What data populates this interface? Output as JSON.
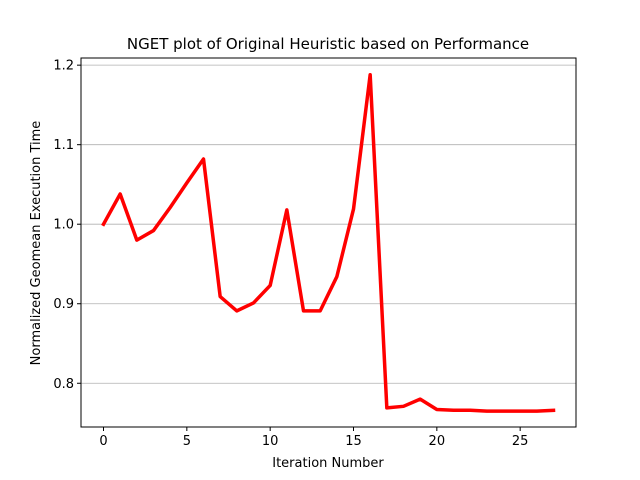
{
  "chart_data": {
    "type": "line",
    "title": "NGET plot of Original Heuristic based on Performance",
    "xlabel": "Iteration Number",
    "ylabel": "Normalized Geomean Execution Time",
    "xlim": [
      -1.35,
      28.35
    ],
    "ylim": [
      0.745,
      1.209
    ],
    "xticks": [
      0,
      5,
      10,
      15,
      20,
      25
    ],
    "yticks": [
      0.8,
      0.9,
      1.0,
      1.1,
      1.2
    ],
    "ytick_labels": [
      "0.8",
      "0.9",
      "1.0",
      "1.1",
      "1.2"
    ],
    "grid": "y-major",
    "line_color": "#ff0000",
    "grid_color": "#b0b0b0",
    "series": [
      {
        "x": [
          0,
          1,
          2,
          3,
          4,
          5,
          6,
          7,
          8,
          9,
          10,
          11,
          12,
          13,
          14,
          15,
          16,
          17,
          18,
          19,
          20,
          21,
          22,
          23,
          24,
          25,
          26,
          27
        ],
        "values": [
          1.0,
          1.038,
          0.98,
          0.992,
          1.021,
          1.052,
          1.082,
          0.909,
          0.891,
          0.901,
          0.923,
          1.018,
          0.891,
          0.891,
          0.934,
          1.019,
          1.188,
          0.769,
          0.771,
          0.78,
          0.767,
          0.766,
          0.766,
          0.765,
          0.765,
          0.765,
          0.765,
          0.766
        ]
      }
    ]
  }
}
